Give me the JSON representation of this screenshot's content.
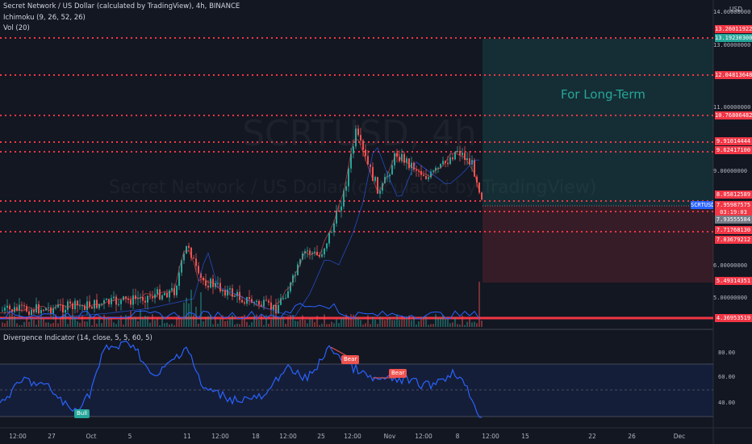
{
  "header": {
    "symbol_title": "Secret Network / US Dollar (calculated by TradingView), 4h, BINANCE",
    "indicator_ichimoku": "Ichimoku (9, 26, 52, 26)",
    "indicator_vol": "Vol (20)",
    "watermark_symbol": "SCRTUSD, 4h",
    "watermark_name": "Secret Network / US Dollar (calculated by TradingView)"
  },
  "currency": "USD",
  "annotation_text": "For Long-Term",
  "price_axis_ticks": [
    "14.00000000",
    "13.00000000",
    "11.00000000",
    "9.00000000",
    "6.00000000",
    "5.00000000"
  ],
  "price_labels": [
    {
      "text": "13.26011922",
      "bg": "#f23645"
    },
    {
      "text": "13.19230300",
      "bg": "#26a69a"
    },
    {
      "text": "12.04813648",
      "bg": "#f23645"
    },
    {
      "text": "10.76806482",
      "bg": "#f23645"
    },
    {
      "text": "9.91014444",
      "bg": "#f23645"
    },
    {
      "text": "9.62417100",
      "bg": "#f23645"
    },
    {
      "text": "8.05812589",
      "bg": "#f23645"
    },
    {
      "text": "SCRTUSD",
      "bg": "#2962ff"
    },
    {
      "text": "7.95987575",
      "bg": "#f23645"
    },
    {
      "text": "03:19:03",
      "bg": "#f23645"
    },
    {
      "text": "7.93555584",
      "bg": "#787b86"
    },
    {
      "text": "7.71768130",
      "bg": "#f23645"
    },
    {
      "text": "7.03679212",
      "bg": "#f23645"
    },
    {
      "text": "5.49314351",
      "bg": "#f23645"
    },
    {
      "text": "4.36953519",
      "bg": "#f23645"
    }
  ],
  "divergence": {
    "title": "Divergence Indicator (14, close, 5, 5, 60, 5)",
    "ticks": [
      "80.00",
      "60.00",
      "40.00"
    ],
    "bull_label": "Bull",
    "bear_labels": [
      "Bear",
      "Bear"
    ]
  },
  "time_axis": [
    "12:00",
    "27",
    "Oct",
    "5",
    "11",
    "12:00",
    "18",
    "12:00",
    "25",
    "12:00",
    "Nov",
    "12:00",
    "8",
    "12:00",
    "15",
    "22",
    "26",
    "Dec"
  ],
  "colors": {
    "background": "#131722",
    "up": "#26a69a",
    "down": "#ef5350",
    "level_line": "#f23645",
    "rsi_line": "#2962ff",
    "long_zone": "#26a69a",
    "short_zone": "#f23645"
  }
}
